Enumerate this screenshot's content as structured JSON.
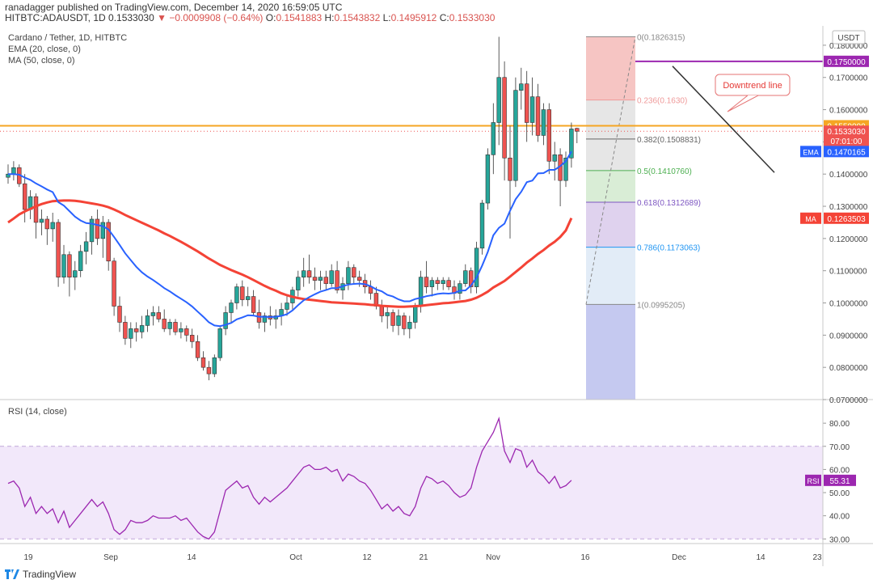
{
  "header": {
    "publisher_line": "ranadagger published on TradingView.com, December 14, 2020 16:59:05 UTC",
    "symbol": "HITBTC:ADAUSDT, 1D",
    "last": "0.1533030",
    "change": "▼ −0.0009908 (−0.64%)",
    "o_label": "O:",
    "o": "0.1541883",
    "h_label": "H:",
    "h": "0.1543832",
    "l_label": "L:",
    "l": "0.1495912",
    "c_label": "C:",
    "c": "0.1533030"
  },
  "legend": {
    "line1": "Cardano / Tether, 1D, HITBTC",
    "line2": "EMA (20, close, 0)",
    "line3": "MA (50, close, 0)",
    "rsi": "RSI (14, close)"
  },
  "footer": {
    "brand": "TradingView"
  },
  "colors": {
    "up": "#26a69a",
    "down": "#ef5350",
    "ema": "#2962ff",
    "ma": "#f44336",
    "resistance": "#f5a623",
    "purple": "#9c27b0",
    "rsi": "#9c27b0",
    "rsi_band": "#e9d8f7"
  },
  "chart_data": {
    "type": "candlestick",
    "currency": "USDT",
    "ylim": [
      0.07,
      0.185
    ],
    "y_ticks": [
      "0.0700000",
      "0.0800000",
      "0.0900000",
      "0.1000000",
      "0.1100000",
      "0.1200000",
      "0.1300000",
      "0.1400000",
      "0.1500000",
      "0.1600000",
      "0.1700000",
      "0.1800000"
    ],
    "x_ticks": [
      "19",
      "Sep",
      "14",
      "Oct",
      "12",
      "21",
      "Nov",
      "16",
      "Dec",
      "14",
      "23"
    ],
    "badges": [
      {
        "label": "0.1750000",
        "value": 0.175,
        "color": "#9c27b0"
      },
      {
        "label": "0.1550000",
        "value": 0.155,
        "color": "#f5a623"
      },
      {
        "label": "0.1533030",
        "value": 0.1533,
        "color": "#ef5350"
      },
      {
        "label": "07:01:00",
        "value": 0.1503,
        "color": "#ef5350"
      },
      {
        "label": "0.1470165",
        "value": 0.147,
        "color": "#2962ff",
        "tag": "EMA"
      },
      {
        "label": "0.1263503",
        "value": 0.1263,
        "color": "#f44336",
        "tag": "MA"
      }
    ],
    "horizontal_lines": [
      {
        "name": "resistance",
        "value": 0.155,
        "color": "#f5a623"
      },
      {
        "name": "high-line",
        "value": 0.175,
        "color": "#9c27b0"
      }
    ],
    "annotation": "Downtrend line",
    "fib_levels": [
      {
        "ratio": "0",
        "value": 0.1826315,
        "label": "0(0.1826315)"
      },
      {
        "ratio": "0.236",
        "value": 0.163,
        "label": "0.236(0.1630)"
      },
      {
        "ratio": "0.382",
        "value": 0.1508831,
        "label": "0.382(0.1508831)"
      },
      {
        "ratio": "0.5",
        "value": 0.141076,
        "label": "0.5(0.1410760)"
      },
      {
        "ratio": "0.618",
        "value": 0.1312689,
        "label": "0.618(0.1312689)"
      },
      {
        "ratio": "0.786",
        "value": 0.1173063,
        "label": "0.786(0.1173063)"
      },
      {
        "ratio": "1",
        "value": 0.0995205,
        "label": "1(0.0995205)"
      }
    ],
    "candles": [
      [
        0.139,
        0.143,
        0.137,
        0.14
      ],
      [
        0.14,
        0.144,
        0.138,
        0.142
      ],
      [
        0.142,
        0.143,
        0.136,
        0.137
      ],
      [
        0.137,
        0.14,
        0.125,
        0.129
      ],
      [
        0.129,
        0.135,
        0.126,
        0.133
      ],
      [
        0.133,
        0.134,
        0.12,
        0.125
      ],
      [
        0.125,
        0.129,
        0.121,
        0.126
      ],
      [
        0.126,
        0.127,
        0.118,
        0.123
      ],
      [
        0.123,
        0.128,
        0.119,
        0.125
      ],
      [
        0.125,
        0.126,
        0.105,
        0.108
      ],
      [
        0.108,
        0.118,
        0.106,
        0.115
      ],
      [
        0.115,
        0.116,
        0.102,
        0.108
      ],
      [
        0.108,
        0.113,
        0.104,
        0.11
      ],
      [
        0.11,
        0.118,
        0.108,
        0.116
      ],
      [
        0.116,
        0.122,
        0.112,
        0.119
      ],
      [
        0.119,
        0.127,
        0.115,
        0.126
      ],
      [
        0.126,
        0.129,
        0.118,
        0.12
      ],
      [
        0.12,
        0.127,
        0.114,
        0.125
      ],
      [
        0.125,
        0.126,
        0.11,
        0.113
      ],
      [
        0.113,
        0.114,
        0.096,
        0.099
      ],
      [
        0.099,
        0.102,
        0.091,
        0.094
      ],
      [
        0.094,
        0.096,
        0.087,
        0.089
      ],
      [
        0.089,
        0.094,
        0.086,
        0.092
      ],
      [
        0.092,
        0.094,
        0.088,
        0.091
      ],
      [
        0.091,
        0.096,
        0.089,
        0.093
      ],
      [
        0.093,
        0.098,
        0.091,
        0.096
      ],
      [
        0.096,
        0.099,
        0.093,
        0.097
      ],
      [
        0.097,
        0.099,
        0.094,
        0.095
      ],
      [
        0.095,
        0.098,
        0.091,
        0.092
      ],
      [
        0.092,
        0.095,
        0.09,
        0.094
      ],
      [
        0.094,
        0.095,
        0.09,
        0.091
      ],
      [
        0.091,
        0.094,
        0.089,
        0.092
      ],
      [
        0.092,
        0.093,
        0.088,
        0.09
      ],
      [
        0.09,
        0.092,
        0.086,
        0.088
      ],
      [
        0.088,
        0.09,
        0.082,
        0.083
      ],
      [
        0.083,
        0.085,
        0.079,
        0.08
      ],
      [
        0.08,
        0.082,
        0.076,
        0.078
      ],
      [
        0.078,
        0.084,
        0.077,
        0.083
      ],
      [
        0.083,
        0.093,
        0.082,
        0.092
      ],
      [
        0.092,
        0.099,
        0.09,
        0.097
      ],
      [
        0.097,
        0.101,
        0.094,
        0.1
      ],
      [
        0.1,
        0.106,
        0.098,
        0.105
      ],
      [
        0.105,
        0.107,
        0.099,
        0.101
      ],
      [
        0.101,
        0.105,
        0.099,
        0.102
      ],
      [
        0.102,
        0.104,
        0.096,
        0.097
      ],
      [
        0.097,
        0.101,
        0.092,
        0.094
      ],
      [
        0.094,
        0.097,
        0.091,
        0.096
      ],
      [
        0.096,
        0.099,
        0.093,
        0.095
      ],
      [
        0.095,
        0.098,
        0.092,
        0.096
      ],
      [
        0.096,
        0.1,
        0.093,
        0.098
      ],
      [
        0.098,
        0.102,
        0.096,
        0.1
      ],
      [
        0.1,
        0.105,
        0.098,
        0.104
      ],
      [
        0.104,
        0.11,
        0.102,
        0.108
      ],
      [
        0.108,
        0.114,
        0.105,
        0.11
      ],
      [
        0.11,
        0.115,
        0.106,
        0.108
      ],
      [
        0.108,
        0.111,
        0.104,
        0.107
      ],
      [
        0.107,
        0.11,
        0.104,
        0.108
      ],
      [
        0.108,
        0.11,
        0.104,
        0.106
      ],
      [
        0.106,
        0.112,
        0.105,
        0.11
      ],
      [
        0.11,
        0.113,
        0.103,
        0.104
      ],
      [
        0.104,
        0.108,
        0.101,
        0.106
      ],
      [
        0.106,
        0.113,
        0.104,
        0.111
      ],
      [
        0.111,
        0.112,
        0.106,
        0.108
      ],
      [
        0.108,
        0.11,
        0.105,
        0.107
      ],
      [
        0.107,
        0.109,
        0.103,
        0.105
      ],
      [
        0.105,
        0.107,
        0.101,
        0.103
      ],
      [
        0.103,
        0.105,
        0.098,
        0.099
      ],
      [
        0.099,
        0.101,
        0.094,
        0.096
      ],
      [
        0.096,
        0.099,
        0.092,
        0.097
      ],
      [
        0.097,
        0.098,
        0.091,
        0.093
      ],
      [
        0.093,
        0.098,
        0.09,
        0.096
      ],
      [
        0.096,
        0.097,
        0.09,
        0.092
      ],
      [
        0.092,
        0.096,
        0.089,
        0.094
      ],
      [
        0.094,
        0.1,
        0.092,
        0.099
      ],
      [
        0.099,
        0.11,
        0.097,
        0.108
      ],
      [
        0.108,
        0.113,
        0.103,
        0.105
      ],
      [
        0.105,
        0.108,
        0.102,
        0.107
      ],
      [
        0.107,
        0.108,
        0.104,
        0.106
      ],
      [
        0.106,
        0.108,
        0.104,
        0.107
      ],
      [
        0.107,
        0.108,
        0.104,
        0.105
      ],
      [
        0.105,
        0.107,
        0.101,
        0.103
      ],
      [
        0.103,
        0.107,
        0.101,
        0.106
      ],
      [
        0.106,
        0.112,
        0.105,
        0.11
      ],
      [
        0.11,
        0.111,
        0.103,
        0.105
      ],
      [
        0.105,
        0.119,
        0.103,
        0.117
      ],
      [
        0.117,
        0.132,
        0.115,
        0.131
      ],
      [
        0.131,
        0.148,
        0.129,
        0.146
      ],
      [
        0.146,
        0.162,
        0.14,
        0.156
      ],
      [
        0.156,
        0.1826,
        0.149,
        0.17
      ],
      [
        0.17,
        0.175,
        0.138,
        0.145
      ],
      [
        0.145,
        0.155,
        0.12,
        0.138
      ],
      [
        0.138,
        0.17,
        0.136,
        0.166
      ],
      [
        0.166,
        0.173,
        0.16,
        0.168
      ],
      [
        0.168,
        0.172,
        0.15,
        0.156
      ],
      [
        0.156,
        0.17,
        0.152,
        0.164
      ],
      [
        0.164,
        0.168,
        0.15,
        0.152
      ],
      [
        0.152,
        0.162,
        0.149,
        0.16
      ],
      [
        0.16,
        0.162,
        0.14,
        0.144
      ],
      [
        0.144,
        0.15,
        0.138,
        0.146
      ],
      [
        0.146,
        0.148,
        0.13,
        0.138
      ],
      [
        0.138,
        0.147,
        0.136,
        0.145
      ],
      [
        0.145,
        0.156,
        0.142,
        0.154
      ],
      [
        0.1541883,
        0.1543832,
        0.1495912,
        0.153303
      ]
    ],
    "ema": [
      0.14,
      0.14,
      0.1398,
      0.1389,
      0.1382,
      0.1371,
      0.1362,
      0.1352,
      0.1344,
      0.1313,
      0.1302,
      0.1285,
      0.1268,
      0.1256,
      0.1248,
      0.1246,
      0.1242,
      0.1238,
      0.1228,
      0.1205,
      0.118,
      0.1154,
      0.1133,
      0.1112,
      0.1095,
      0.1082,
      0.1071,
      0.1059,
      0.1046,
      0.1036,
      0.1024,
      0.1013,
      0.1002,
      0.0989,
      0.0973,
      0.0957,
      0.094,
      0.093,
      0.0928,
      0.0932,
      0.0938,
      0.0949,
      0.0955,
      0.0962,
      0.0961,
      0.0957,
      0.0957,
      0.0956,
      0.0957,
      0.096,
      0.0965,
      0.0977,
      0.0993,
      0.1008,
      0.1018,
      0.1027,
      0.1035,
      0.104,
      0.1046,
      0.1046,
      0.1052,
      0.1057,
      0.1059,
      0.106,
      0.1058,
      0.1052,
      0.1042,
      0.1036,
      0.1025,
      0.102,
      0.1011,
      0.1005,
      0.1005,
      0.1012,
      0.1016,
      0.1021,
      0.1024,
      0.1028,
      0.103,
      0.1029,
      0.1031,
      0.1038,
      0.1039,
      0.1054,
      0.1079,
      0.1116,
      0.1158,
      0.121,
      0.1233,
      0.1246,
      0.1286,
      0.1322,
      0.1345,
      0.1375,
      0.138,
      0.1402,
      0.1403,
      0.1413,
      0.1413,
      0.1425,
      0.144,
      0.147
    ],
    "ma": [
      0.125,
      0.1262,
      0.1275,
      0.1284,
      0.1292,
      0.13,
      0.1307,
      0.1312,
      0.1316,
      0.1317,
      0.1318,
      0.1318,
      0.1317,
      0.1315,
      0.1312,
      0.1309,
      0.1306,
      0.1302,
      0.1297,
      0.129,
      0.1282,
      0.1273,
      0.1265,
      0.1257,
      0.1249,
      0.1241,
      0.1233,
      0.1225,
      0.1216,
      0.1208,
      0.1199,
      0.119,
      0.118,
      0.117,
      0.116,
      0.1149,
      0.1138,
      0.1128,
      0.1118,
      0.111,
      0.1102,
      0.1095,
      0.1088,
      0.108,
      0.1071,
      0.1062,
      0.1053,
      0.1045,
      0.1038,
      0.103,
      0.1024,
      0.1019,
      0.1015,
      0.1012,
      0.101,
      0.1008,
      0.1006,
      0.1004,
      0.1002,
      0.1001,
      0.1,
      0.0999,
      0.0998,
      0.0997,
      0.0996,
      0.0994,
      0.0993,
      0.0991,
      0.099,
      0.0989,
      0.0988,
      0.0988,
      0.0989,
      0.099,
      0.0991,
      0.0993,
      0.0995,
      0.0997,
      0.0999,
      0.1,
      0.1002,
      0.1004,
      0.1006,
      0.101,
      0.1016,
      0.1025,
      0.1035,
      0.1048,
      0.1058,
      0.1068,
      0.1082,
      0.1096,
      0.111,
      0.1125,
      0.1138,
      0.1152,
      0.1164,
      0.1178,
      0.119,
      0.1205,
      0.1225,
      0.1263503
    ],
    "rsi": {
      "label": "RSI",
      "last": "55.31",
      "ylim": [
        28,
        86
      ],
      "y_ticks": [
        "30.00",
        "40.00",
        "50.00",
        "60.00",
        "70.00",
        "80.00"
      ],
      "band": [
        30,
        70
      ],
      "values": [
        54,
        55,
        52,
        44,
        48,
        41,
        44,
        41,
        43,
        37,
        42,
        35,
        38,
        41,
        44,
        47,
        44,
        46,
        41,
        34,
        32,
        34,
        38,
        37,
        37,
        38,
        40,
        39,
        39,
        39,
        40,
        38,
        39,
        36,
        33,
        31,
        30,
        33,
        42,
        51,
        53,
        55,
        52,
        53,
        48,
        45,
        48,
        46,
        48,
        50,
        52,
        55,
        58,
        61,
        62,
        60,
        60,
        61,
        59,
        60,
        55,
        58,
        57,
        55,
        54,
        51,
        47,
        43,
        45,
        42,
        44,
        41,
        40,
        44,
        52,
        57,
        56,
        54,
        55,
        53,
        50,
        48,
        49,
        52,
        61,
        68,
        72,
        76,
        82,
        68,
        63,
        69,
        68,
        61,
        64,
        59,
        57,
        54,
        57,
        52,
        53,
        55.31
      ]
    }
  }
}
